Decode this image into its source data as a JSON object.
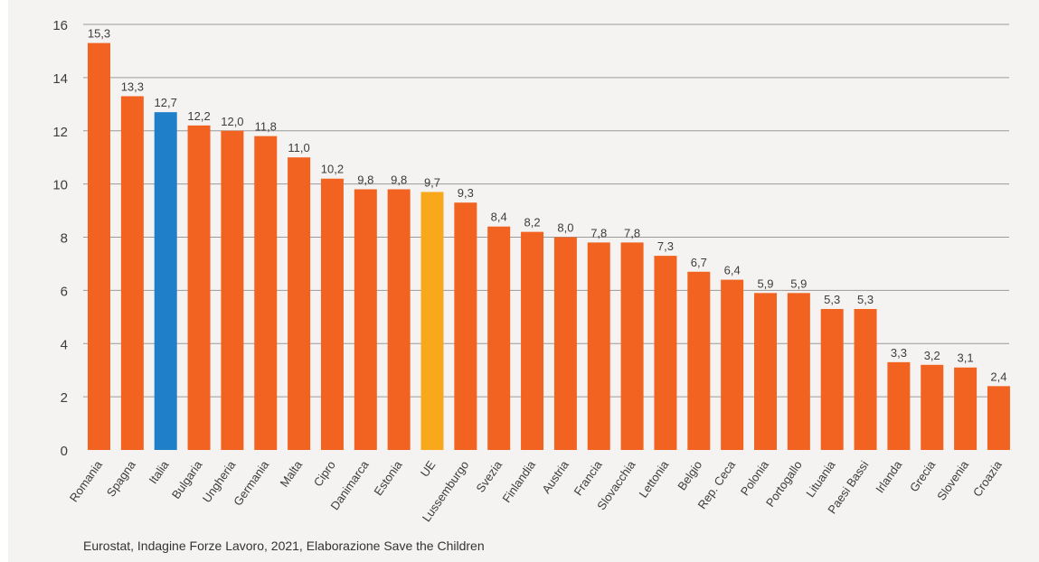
{
  "chart_data": {
    "type": "bar",
    "categories": [
      "Romania",
      "Spagna",
      "Italia",
      "Bulgaria",
      "Ungheria",
      "Germania",
      "Malta",
      "Cipro",
      "Danimarca",
      "Estonia",
      "UE",
      "Lussemburgo",
      "Svezia",
      "Finlandia",
      "Austria",
      "Francia",
      "Slovacchia",
      "Lettonia",
      "Belgio",
      "Rep. Ceca",
      "Polonia",
      "Portogallo",
      "Lituania",
      "Paesi Bassi",
      "Irlanda",
      "Grecia",
      "Slovenia",
      "Croazia"
    ],
    "values": [
      15.3,
      13.3,
      12.7,
      12.2,
      12.0,
      11.8,
      11.0,
      10.2,
      9.8,
      9.8,
      9.7,
      9.3,
      8.4,
      8.2,
      8.0,
      7.8,
      7.8,
      7.3,
      6.7,
      6.4,
      5.9,
      5.9,
      5.3,
      5.3,
      3.3,
      3.2,
      3.1,
      2.4
    ],
    "value_labels": [
      "15,3",
      "13,3",
      "12,7",
      "12,2",
      "12,0",
      "11,8",
      "11,0",
      "10,2",
      "9,8",
      "9,8",
      "9,7",
      "9,3",
      "8,4",
      "8,2",
      "8,0",
      "7,8",
      "7,8",
      "7,3",
      "6,7",
      "6,4",
      "5,9",
      "5,9",
      "5,3",
      "5,3",
      "3,3",
      "3,2",
      "3,1",
      "2,4"
    ],
    "colors": {
      "default": "#f26322",
      "Italia": "#1f7fc9",
      "UE": "#f7a81b"
    },
    "yticks": [
      "0",
      "2",
      "4",
      "6",
      "8",
      "10",
      "12",
      "14",
      "16"
    ],
    "ylim": [
      0,
      16
    ],
    "grid": true,
    "title": "",
    "xlabel": "",
    "ylabel": ""
  },
  "source": "Eurostat, Indagine Forze Lavoro, 2021, Elaborazione Save the Children"
}
